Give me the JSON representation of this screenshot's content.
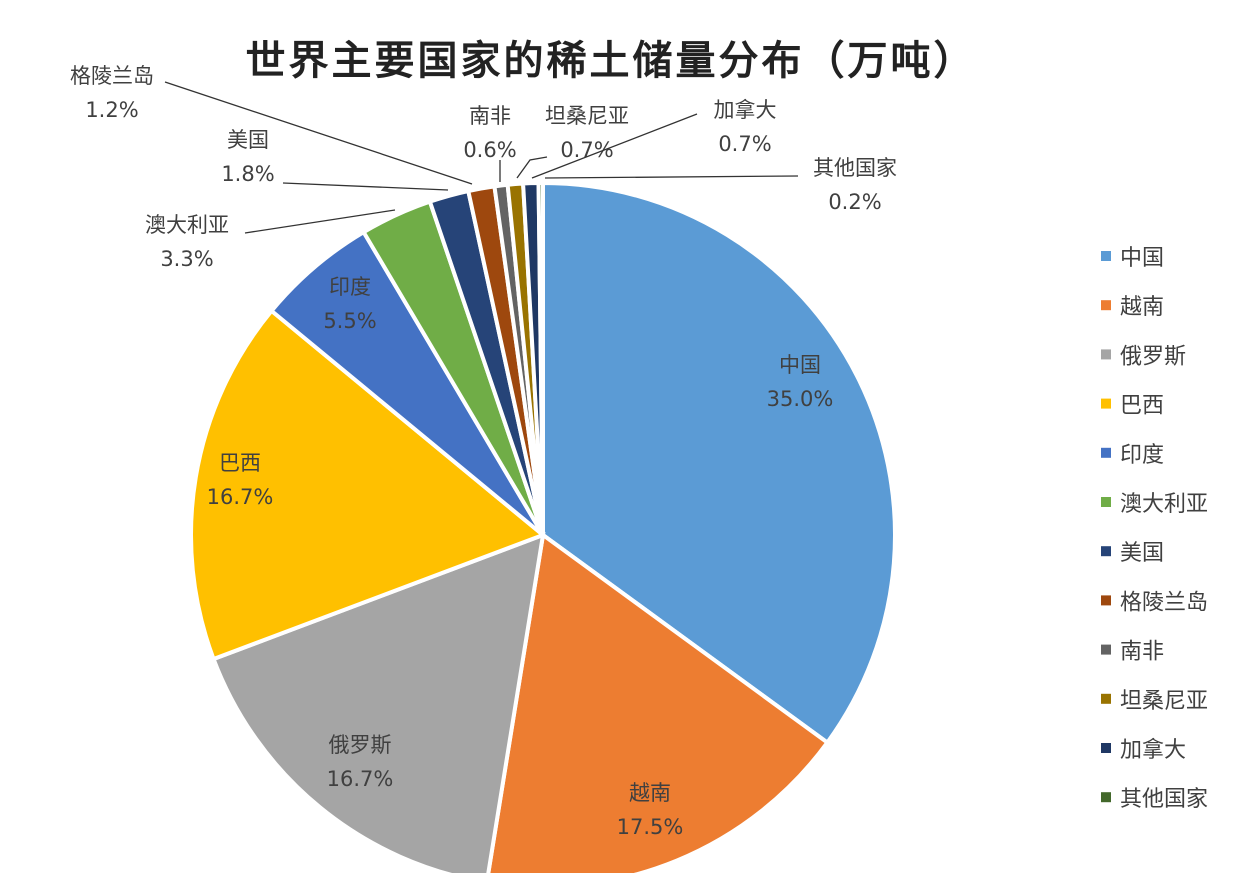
{
  "chart_data": {
    "type": "pie",
    "title": "世界主要国家的稀土储量分布（万吨）",
    "categories": [
      "中国",
      "越南",
      "俄罗斯",
      "巴西",
      "印度",
      "澳大利亚",
      "美国",
      "格陵兰岛",
      "南非",
      "坦桑尼亚",
      "加拿大",
      "其他国家"
    ],
    "values": [
      35.0,
      17.5,
      16.7,
      16.7,
      5.5,
      3.3,
      1.8,
      1.2,
      0.6,
      0.7,
      0.7,
      0.2
    ],
    "data_labels": [
      "35.0%",
      "17.5%",
      "16.7%",
      "16.7%",
      "5.5%",
      "3.3%",
      "1.8%",
      "1.2%",
      "0.6%",
      "0.7%",
      "0.7%",
      "0.2%"
    ],
    "colors": [
      "#5B9BD5",
      "#ED7D31",
      "#A5A5A5",
      "#FFC000",
      "#4472C4",
      "#70AD47",
      "#264478",
      "#9E480E",
      "#636363",
      "#997300",
      "#1F3864",
      "#43682B"
    ],
    "start_angle": "12 o'clock",
    "direction": "clockwise",
    "legend_position": "right"
  }
}
